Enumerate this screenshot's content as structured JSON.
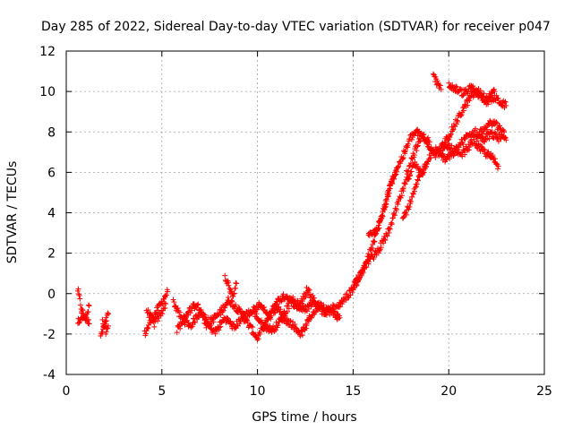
{
  "chart_data": {
    "type": "scatter",
    "title": "Day 285 of 2022, Sidereal Day-to-day VTEC variation (SDTVAR) for receiver p047",
    "xlabel": "GPS time / hours",
    "ylabel": "SDTVAR / TECUs",
    "xlim": [
      0,
      25
    ],
    "ylim": [
      -4,
      12
    ],
    "xticks": [
      0,
      5,
      10,
      15,
      20,
      25
    ],
    "yticks": [
      -4,
      -2,
      0,
      2,
      4,
      6,
      8,
      10,
      12
    ],
    "grid": true,
    "marker": "plus",
    "color": "#ff0000",
    "series": [
      {
        "name": "SDTVAR",
        "tracks": [
          {
            "t": [
              0.6,
              0.8,
              1.0,
              1.2
            ],
            "v": [
              0.2,
              -0.8,
              -1.3,
              -0.6
            ]
          },
          {
            "t": [
              0.6,
              0.9,
              1.2
            ],
            "v": [
              -1.4,
              -1.0,
              -1.5
            ]
          },
          {
            "t": [
              1.8,
              2.0,
              2.2
            ],
            "v": [
              -2.1,
              -1.6,
              -1.0
            ]
          },
          {
            "t": [
              1.9,
              2.1,
              2.2
            ],
            "v": [
              -1.4,
              -1.9,
              -1.6
            ]
          },
          {
            "t": [
              4.1,
              4.5,
              4.9,
              5.3
            ],
            "v": [
              -2.0,
              -1.2,
              -0.6,
              0.1
            ]
          },
          {
            "t": [
              4.2,
              4.6,
              5.0,
              5.2
            ],
            "v": [
              -0.8,
              -1.5,
              -0.9,
              -0.5
            ]
          },
          {
            "t": [
              5.6,
              6.0,
              6.5,
              7.0,
              7.5,
              8.0,
              8.5,
              9.0,
              9.5,
              10.0,
              10.5,
              11.0,
              11.5,
              12.0,
              12.5,
              13.0,
              13.5,
              14.0
            ],
            "v": [
              -0.4,
              -1.2,
              -1.6,
              -0.9,
              -1.4,
              -1.0,
              -0.3,
              -0.8,
              -1.5,
              -2.2,
              -1.3,
              -0.4,
              -0.1,
              -0.6,
              -0.8,
              -0.3,
              -1.0,
              -0.6
            ]
          },
          {
            "t": [
              5.8,
              6.3,
              6.8,
              7.3,
              7.8,
              8.3,
              8.8,
              9.3,
              9.8,
              10.3,
              10.8,
              11.3,
              11.8,
              12.3,
              12.8,
              13.3,
              13.8,
              14.3
            ],
            "v": [
              -1.8,
              -1.0,
              -0.5,
              -1.5,
              -1.9,
              -1.2,
              -1.7,
              -1.0,
              -0.9,
              -1.6,
              -1.8,
              -1.2,
              -1.5,
              -2.0,
              -1.1,
              -0.5,
              -0.9,
              -1.2
            ]
          },
          {
            "t": [
              8.3,
              8.5,
              8.7,
              8.9
            ],
            "v": [
              0.8,
              0.4,
              -0.2,
              0.5
            ]
          },
          {
            "t": [
              9.8,
              10.2,
              10.6,
              11.0,
              11.4,
              11.8,
              12.2,
              12.6,
              13.0
            ],
            "v": [
              -0.8,
              -0.5,
              -1.2,
              -0.7,
              -1.0,
              -0.3,
              -0.6,
              0.2,
              -0.4
            ]
          },
          {
            "t": [
              14.0,
              14.4,
              14.8,
              15.2,
              15.6,
              16.0,
              16.3,
              16.6,
              16.9,
              17.2,
              17.5,
              17.8,
              18.0,
              18.3,
              18.6,
              19.0,
              19.3,
              19.6,
              20.0,
              20.3,
              20.6,
              21.0,
              21.3,
              21.6,
              22.0,
              22.3,
              22.6
            ],
            "v": [
              -0.9,
              -0.4,
              0.0,
              0.6,
              1.4,
              2.3,
              3.2,
              4.2,
              5.2,
              6.0,
              6.6,
              7.2,
              7.7,
              8.0,
              7.8,
              7.3,
              6.9,
              7.0,
              7.3,
              7.0,
              6.8,
              7.2,
              7.6,
              7.2,
              6.9,
              6.7,
              6.3
            ]
          },
          {
            "t": [
              15.0,
              15.4,
              15.8,
              16.2,
              16.6,
              17.0,
              17.4,
              17.8,
              18.2,
              18.6,
              19.0,
              19.4,
              19.8,
              20.2,
              20.6,
              21.0,
              21.4,
              21.8,
              22.2,
              22.6,
              22.9
            ],
            "v": [
              0.4,
              1.0,
              1.6,
              2.0,
              2.6,
              3.4,
              4.6,
              5.6,
              6.4,
              6.0,
              6.8,
              7.2,
              6.6,
              6.9,
              7.4,
              7.8,
              8.0,
              7.6,
              7.9,
              7.7,
              8.0
            ]
          },
          {
            "t": [
              15.8,
              16.1,
              16.4,
              16.7,
              17.0,
              17.3
            ],
            "v": [
              2.8,
              3.0,
              3.5,
              4.3,
              5.6,
              6.2
            ]
          },
          {
            "t": [
              17.6,
              18.0,
              18.4,
              18.8
            ],
            "v": [
              3.7,
              4.5,
              5.6,
              6.3
            ]
          },
          {
            "t": [
              17.8,
              18.2,
              18.6,
              19.0
            ],
            "v": [
              6.0,
              7.0,
              7.8,
              7.5
            ]
          },
          {
            "t": [
              19.2,
              19.4,
              19.6
            ],
            "v": [
              10.8,
              10.4,
              10.1
            ]
          },
          {
            "t": [
              19.6,
              20.0,
              20.4,
              20.8,
              21.2,
              21.6,
              22.0,
              22.4
            ],
            "v": [
              7.2,
              7.8,
              8.5,
              9.2,
              9.8,
              10.0,
              9.6,
              10.0
            ]
          },
          {
            "t": [
              20.0,
              20.4,
              20.8,
              21.2,
              21.6,
              22.0,
              22.4,
              22.8,
              23.0
            ],
            "v": [
              10.3,
              10.1,
              9.9,
              10.2,
              9.8,
              9.5,
              9.7,
              9.4,
              9.3
            ]
          },
          {
            "t": [
              21.5,
              21.9,
              22.3,
              22.7,
              23.0
            ],
            "v": [
              7.8,
              8.2,
              8.5,
              8.1,
              7.6
            ]
          }
        ]
      }
    ]
  }
}
